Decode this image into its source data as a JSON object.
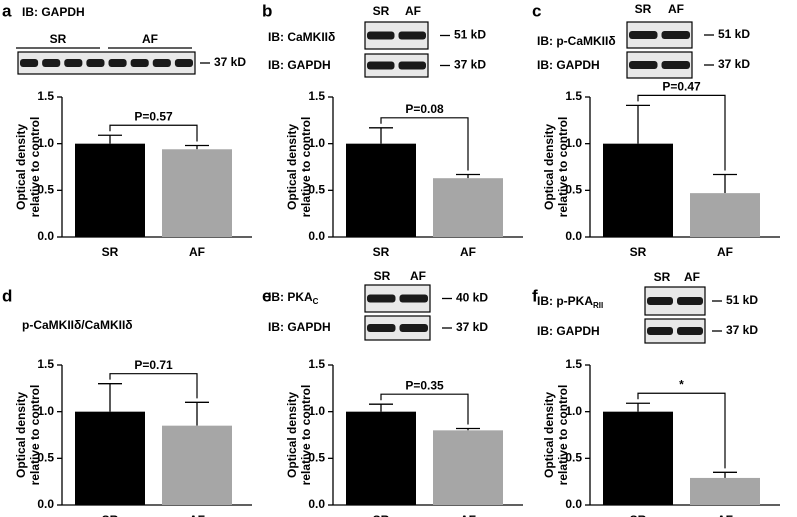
{
  "chart_data": [
    {
      "type": "bar",
      "panel": "a",
      "blots": [
        {
          "label": "IB: GAPDH",
          "kd": "37 kD"
        }
      ],
      "lanes": [
        "SR",
        "AF"
      ],
      "ylabel": [
        "Optical density",
        "relative to control"
      ],
      "categories": [
        "SR",
        "AF"
      ],
      "values": [
        1.0,
        0.94
      ],
      "errors": [
        0.09,
        0.04
      ],
      "colors": [
        "#000000",
        "#a6a6a6"
      ],
      "annotation": "P=0.57",
      "ylim": [
        0,
        1.5
      ],
      "yticks": [
        {
          "value": 0,
          "label": "0.0"
        },
        {
          "value": 0.5,
          "label": "0.5"
        },
        {
          "value": 1,
          "label": "1.0"
        },
        {
          "value": 1.5,
          "label": "1.5"
        }
      ]
    },
    {
      "type": "bar",
      "panel": "b",
      "blots": [
        {
          "label": "IB: CaMKIIδ",
          "kd": "51 kD"
        },
        {
          "label": "IB: GAPDH",
          "kd": "37 kD"
        }
      ],
      "lanes": [
        "SR",
        "AF"
      ],
      "ylabel": [
        "Optical density",
        "relative to control"
      ],
      "categories": [
        "SR",
        "AF"
      ],
      "values": [
        1.0,
        0.63
      ],
      "errors": [
        0.17,
        0.04
      ],
      "colors": [
        "#000000",
        "#a6a6a6"
      ],
      "annotation": "P=0.08",
      "ylim": [
        0,
        1.5
      ],
      "yticks": [
        {
          "value": 0,
          "label": "0.0"
        },
        {
          "value": 0.5,
          "label": "0.5"
        },
        {
          "value": 1,
          "label": "1.0"
        },
        {
          "value": 1.5,
          "label": "1.5"
        }
      ]
    },
    {
      "type": "bar",
      "panel": "c",
      "blots": [
        {
          "label": "IB: p-CaMKIIδ",
          "kd": "51 kD"
        },
        {
          "label": "IB: GAPDH",
          "kd": "37 kD"
        }
      ],
      "lanes": [
        "SR",
        "AF"
      ],
      "ylabel": [
        "Optical density",
        "relative to control"
      ],
      "categories": [
        "SR",
        "AF"
      ],
      "values": [
        1.0,
        0.47
      ],
      "errors": [
        0.41,
        0.2
      ],
      "colors": [
        "#000000",
        "#a6a6a6"
      ],
      "annotation": "P=0.47",
      "ylim": [
        0,
        1.5
      ],
      "yticks": [
        {
          "value": 0,
          "label": "0.0"
        },
        {
          "value": 0.5,
          "label": "0.5"
        },
        {
          "value": 1,
          "label": "1.0"
        },
        {
          "value": 1.5,
          "label": "1.5"
        }
      ]
    },
    {
      "type": "bar",
      "panel": "d",
      "subtitle": "p-CaMKIIδ/CaMKIIδ",
      "ylabel": [
        "Optical density",
        "relative to control"
      ],
      "categories": [
        "SR",
        "AF"
      ],
      "values": [
        1.0,
        0.85
      ],
      "errors": [
        0.3,
        0.25
      ],
      "colors": [
        "#000000",
        "#a6a6a6"
      ],
      "annotation": "P=0.71",
      "ylim": [
        0,
        1.5
      ],
      "yticks": [
        {
          "value": 0,
          "label": "0.0"
        },
        {
          "value": 0.5,
          "label": "0.5"
        },
        {
          "value": 1,
          "label": "1.0"
        },
        {
          "value": 1.5,
          "label": "1.5"
        }
      ]
    },
    {
      "type": "bar",
      "panel": "e",
      "blots": [
        {
          "label": "IB: PKA",
          "sub": "C",
          "kd": "40 kD"
        },
        {
          "label": "IB: GAPDH",
          "kd": "37 kD"
        }
      ],
      "lanes": [
        "SR",
        "AF"
      ],
      "ylabel": [
        "Optical density",
        "relative to control"
      ],
      "categories": [
        "SR",
        "AF"
      ],
      "values": [
        1.0,
        0.8
      ],
      "errors": [
        0.08,
        0.02
      ],
      "colors": [
        "#000000",
        "#a6a6a6"
      ],
      "annotation": "P=0.35",
      "ylim": [
        0,
        1.5
      ],
      "yticks": [
        {
          "value": 0,
          "label": "0.0"
        },
        {
          "value": 0.5,
          "label": "0.5"
        },
        {
          "value": 1,
          "label": "1.0"
        },
        {
          "value": 1.5,
          "label": "1.5"
        }
      ]
    },
    {
      "type": "bar",
      "panel": "f",
      "blots": [
        {
          "label": "IB: p-PKA",
          "sub": "RII",
          "kd": "51 kD"
        },
        {
          "label": "IB: GAPDH",
          "kd": "37 kD"
        }
      ],
      "lanes": [
        "SR",
        "AF"
      ],
      "ylabel": [
        "Optical density",
        "relative to control"
      ],
      "categories": [
        "SR",
        "AF"
      ],
      "values": [
        1.0,
        0.29
      ],
      "errors": [
        0.09,
        0.06
      ],
      "colors": [
        "#000000",
        "#a6a6a6"
      ],
      "annotation": "*",
      "ylim": [
        0,
        1.5
      ],
      "yticks": [
        {
          "value": 0,
          "label": "0.0"
        },
        {
          "value": 0.5,
          "label": "0.5"
        },
        {
          "value": 1,
          "label": "1.0"
        },
        {
          "value": 1.5,
          "label": "1.5"
        }
      ]
    }
  ]
}
